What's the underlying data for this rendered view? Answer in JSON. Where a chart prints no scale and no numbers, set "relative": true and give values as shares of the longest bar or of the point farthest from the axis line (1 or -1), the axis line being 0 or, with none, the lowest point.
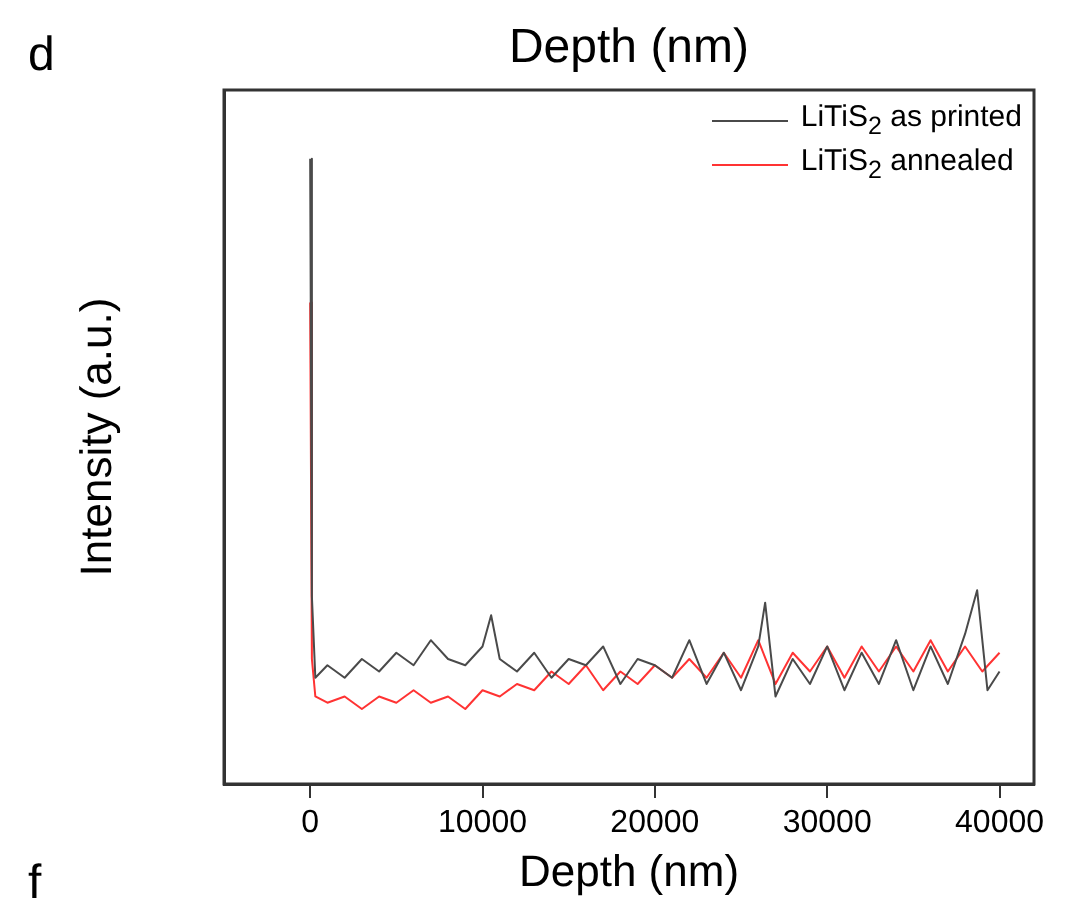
{
  "chart_data": {
    "type": "line",
    "xlabel": "Depth (nm)",
    "ylabel": "Intensity (a.u.)",
    "relative": true,
    "annotations": [
      "d",
      "Depth (nm)",
      "f"
    ],
    "xlim": [
      -5000,
      42000
    ],
    "xticks": [
      0,
      10000,
      20000,
      30000,
      40000
    ],
    "legend": "top right",
    "grid": false,
    "marker": "none",
    "line_style": "solid",
    "series": [
      {
        "name": "LiTiS$_{2}$ as printed",
        "color": "#4a4a4a",
        "x": [
          0,
          100,
          300,
          1000,
          2000,
          3000,
          4000,
          5000,
          6000,
          7000,
          8000,
          9000,
          10000,
          10500,
          11000,
          12000,
          13000,
          14000,
          15000,
          16000,
          17000,
          18000,
          19000,
          20000,
          21000,
          22000,
          23000,
          24000,
          25000,
          26000,
          26400,
          27000,
          28000,
          29000,
          30000,
          31000,
          32000,
          33000,
          34000,
          35000,
          36000,
          37000,
          38000,
          38700,
          39300,
          40000
        ],
        "values": [
          1.0,
          0.3,
          0.17,
          0.19,
          0.17,
          0.2,
          0.18,
          0.21,
          0.19,
          0.23,
          0.2,
          0.19,
          0.22,
          0.27,
          0.2,
          0.18,
          0.21,
          0.17,
          0.2,
          0.19,
          0.22,
          0.16,
          0.2,
          0.19,
          0.17,
          0.23,
          0.16,
          0.21,
          0.15,
          0.22,
          0.29,
          0.14,
          0.2,
          0.16,
          0.22,
          0.15,
          0.21,
          0.16,
          0.23,
          0.15,
          0.22,
          0.16,
          0.24,
          0.31,
          0.15,
          0.18
        ]
      },
      {
        "name": "LiTiS$_{2}$ annealed",
        "color": "#ff3333",
        "x": [
          0,
          100,
          300,
          1000,
          2000,
          3000,
          4000,
          5000,
          6000,
          7000,
          8000,
          9000,
          10000,
          11000,
          12000,
          13000,
          14000,
          15000,
          16000,
          17000,
          18000,
          19000,
          20000,
          21000,
          22000,
          23000,
          24000,
          25000,
          26000,
          27000,
          28000,
          29000,
          30000,
          31000,
          32000,
          33000,
          34000,
          35000,
          36000,
          37000,
          38000,
          39000,
          40000
        ],
        "values": [
          0.77,
          0.2,
          0.14,
          0.13,
          0.14,
          0.12,
          0.14,
          0.13,
          0.15,
          0.13,
          0.14,
          0.12,
          0.15,
          0.14,
          0.16,
          0.15,
          0.18,
          0.16,
          0.19,
          0.15,
          0.18,
          0.16,
          0.19,
          0.17,
          0.2,
          0.17,
          0.21,
          0.17,
          0.23,
          0.16,
          0.21,
          0.18,
          0.22,
          0.17,
          0.22,
          0.18,
          0.22,
          0.18,
          0.23,
          0.18,
          0.22,
          0.18,
          0.21
        ]
      }
    ]
  }
}
